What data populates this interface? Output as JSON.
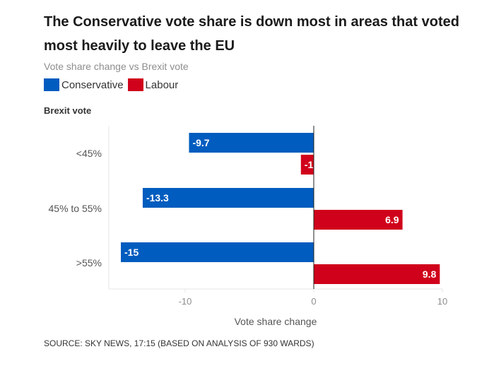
{
  "header": {
    "title": "The Conservative vote share is down most in areas that voted most heavily to leave the EU",
    "subtitle": "Vote share change vs Brexit vote"
  },
  "legend": [
    {
      "label": "Conservative",
      "color": "#005cbf"
    },
    {
      "label": "Labour",
      "color": "#d0021b"
    }
  ],
  "footer": {
    "source": "SOURCE: SKY NEWS, 17:15 (BASED ON ANALYSIS OF 930 WARDS)"
  },
  "chart_data": {
    "type": "bar",
    "orientation": "horizontal",
    "categories": [
      "<45%",
      "45% to 55%",
      ">55%"
    ],
    "category_axis_label": "Brexit vote",
    "series": [
      {
        "name": "Conservative",
        "color": "#005cbf",
        "values": [
          -9.7,
          -13.3,
          -15
        ]
      },
      {
        "name": "Labour",
        "color": "#d0021b",
        "values": [
          -1,
          6.9,
          9.8
        ]
      }
    ],
    "xlabel": "Vote share change",
    "xlim": [
      -16,
      10
    ],
    "xticks": [
      -10,
      0,
      10
    ],
    "grid": false,
    "legend_position": "top-left"
  }
}
